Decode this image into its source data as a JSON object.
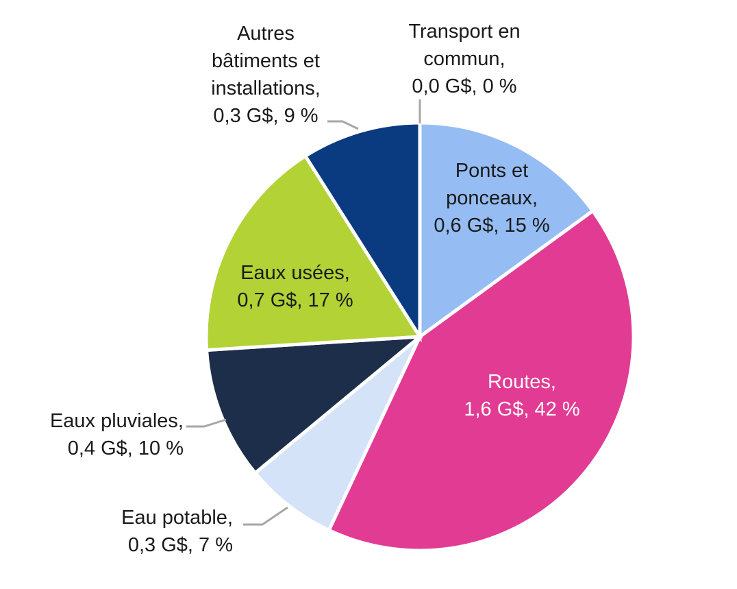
{
  "chart_data": {
    "type": "pie",
    "start_angle_deg": 0,
    "direction": "clockwise",
    "slices": [
      {
        "name": "Transport en commun",
        "value": 0.0,
        "percent": 0,
        "color": "#8a8a8a",
        "label_lines": [
          "Transport en",
          "commun,",
          "0,0 G$, 0 %"
        ]
      },
      {
        "name": "Ponts et ponceaux",
        "value": 0.6,
        "percent": 15,
        "color": "#95bcf3",
        "label_lines": [
          "Ponts et",
          "ponceaux,",
          "0,6 G$, 15 %"
        ]
      },
      {
        "name": "Routes",
        "value": 1.6,
        "percent": 42,
        "color": "#e23b93",
        "label_lines": [
          "Routes,",
          "1,6 G$, 42 %"
        ]
      },
      {
        "name": "Eau potable",
        "value": 0.3,
        "percent": 7,
        "color": "#d4e3f8",
        "label_lines": [
          "Eau potable,",
          "0,3 G$, 7 %"
        ]
      },
      {
        "name": "Eaux pluviales",
        "value": 0.4,
        "percent": 10,
        "color": "#1d2e4a",
        "label_lines": [
          "Eaux pluviales,",
          "0,4 G$, 10 %"
        ]
      },
      {
        "name": "Eaux usées",
        "value": 0.7,
        "percent": 17,
        "color": "#b2d235",
        "label_lines": [
          "Eaux usées,",
          "0,7 G$, 17 %"
        ]
      },
      {
        "name": "Autres bâtiments et installations",
        "value": 0.3,
        "percent": 9,
        "color": "#0a3b80",
        "label_lines": [
          "Autres",
          "bâtiments et",
          "installations,",
          "0,3 G$, 9 %"
        ]
      }
    ]
  }
}
